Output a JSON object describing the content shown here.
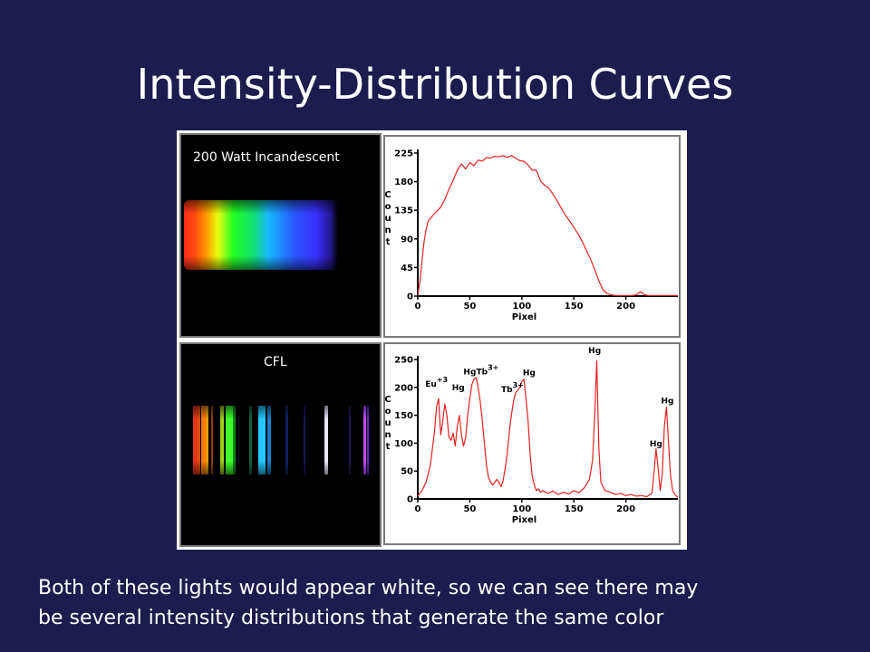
{
  "slide": {
    "title": "Intensity-Distribution Curves",
    "caption_line1": "Both of these lights would appear white, so we can see there may",
    "caption_line2": "be several intensity distributions that generate the same color"
  },
  "chart_data": [
    {
      "type": "line",
      "title": "",
      "spectrum_label": "200 Watt Incandescent",
      "xlabel": "Pixel",
      "ylabel_letters": [
        "C",
        "o",
        "u",
        "n",
        "t"
      ],
      "xlim": [
        0,
        250
      ],
      "ylim": [
        0,
        225
      ],
      "xticks": [
        0,
        50,
        100,
        150,
        200
      ],
      "yticks": [
        0,
        45,
        90,
        135,
        180,
        225
      ],
      "grid": false,
      "series": [
        {
          "color": "#e8211f",
          "x": [
            0,
            2,
            4,
            6,
            8,
            10,
            14,
            18,
            22,
            26,
            30,
            34,
            38,
            42,
            46,
            50,
            54,
            58,
            62,
            66,
            70,
            74,
            78,
            82,
            86,
            90,
            94,
            98,
            102,
            106,
            110,
            114,
            118,
            122,
            126,
            130,
            134,
            138,
            142,
            146,
            150,
            154,
            158,
            162,
            166,
            170,
            174,
            178,
            182,
            186,
            190,
            194,
            198,
            202,
            206,
            210,
            214,
            218,
            222,
            226,
            230,
            234,
            238,
            242,
            246,
            250
          ],
          "y": [
            2,
            22,
            55,
            85,
            105,
            118,
            126,
            133,
            140,
            152,
            168,
            182,
            198,
            208,
            200,
            210,
            205,
            214,
            212,
            218,
            217,
            220,
            219,
            221,
            218,
            221,
            217,
            213,
            212,
            206,
            198,
            198,
            181,
            174,
            170,
            160,
            150,
            138,
            127,
            118,
            108,
            98,
            86,
            72,
            58,
            42,
            24,
            10,
            4,
            2,
            1,
            1,
            1,
            1,
            1,
            2,
            7,
            2,
            1,
            1,
            1,
            1,
            1,
            1,
            1,
            1
          ]
        }
      ]
    },
    {
      "type": "line",
      "title": "",
      "spectrum_label": "CFL",
      "xlabel": "Pixel",
      "ylabel_letters": [
        "C",
        "o",
        "u",
        "n",
        "t"
      ],
      "xlim": [
        0,
        250
      ],
      "ylim": [
        0,
        250
      ],
      "xticks": [
        0,
        50,
        100,
        150,
        200
      ],
      "yticks": [
        0,
        50,
        100,
        150,
        200,
        250
      ],
      "grid": false,
      "annotations": [
        {
          "base": "Eu",
          "sup": "+3",
          "x": 18,
          "y": 195
        },
        {
          "base": "Hg",
          "sup": "",
          "x": 39,
          "y": 188
        },
        {
          "base": "Hg",
          "sup": "",
          "x": 50,
          "y": 217
        },
        {
          "base": "Tb",
          "sup": "3+",
          "x": 67,
          "y": 217
        },
        {
          "base": "Tb",
          "sup": "3+",
          "x": 91,
          "y": 185
        },
        {
          "base": "Hg",
          "sup": "",
          "x": 107,
          "y": 215
        },
        {
          "base": "Hg",
          "sup": "",
          "x": 170,
          "y": 255
        },
        {
          "base": "Hg",
          "sup": "",
          "x": 229,
          "y": 88
        },
        {
          "base": "Hg",
          "sup": "",
          "x": 240,
          "y": 165
        }
      ],
      "series": [
        {
          "color": "#e8211f",
          "x": [
            0,
            4,
            8,
            12,
            16,
            18,
            20,
            22,
            24,
            26,
            28,
            30,
            32,
            34,
            36,
            38,
            40,
            42,
            44,
            46,
            48,
            50,
            52,
            54,
            56,
            58,
            60,
            62,
            64,
            66,
            68,
            70,
            72,
            74,
            76,
            78,
            80,
            82,
            84,
            86,
            88,
            90,
            92,
            94,
            96,
            98,
            100,
            102,
            104,
            106,
            108,
            110,
            112,
            114,
            116,
            118,
            120,
            125,
            130,
            135,
            140,
            145,
            150,
            155,
            160,
            165,
            168,
            170,
            172,
            174,
            176,
            180,
            185,
            190,
            195,
            200,
            205,
            210,
            215,
            220,
            225,
            227,
            229,
            231,
            233,
            235,
            237,
            239,
            241,
            243,
            245,
            247,
            250
          ],
          "y": [
            5,
            15,
            30,
            60,
            120,
            165,
            180,
            115,
            140,
            170,
            150,
            110,
            105,
            118,
            95,
            130,
            150,
            115,
            95,
            110,
            150,
            180,
            205,
            215,
            218,
            200,
            175,
            140,
            100,
            60,
            38,
            30,
            25,
            30,
            35,
            30,
            22,
            32,
            55,
            80,
            120,
            150,
            175,
            190,
            195,
            200,
            210,
            215,
            180,
            140,
            80,
            40,
            25,
            15,
            18,
            12,
            15,
            10,
            14,
            8,
            12,
            9,
            15,
            11,
            20,
            35,
            70,
            150,
            248,
            90,
            30,
            15,
            12,
            8,
            10,
            6,
            8,
            5,
            6,
            4,
            10,
            45,
            90,
            55,
            15,
            45,
            130,
            165,
            100,
            40,
            15,
            8,
            3
          ]
        }
      ]
    }
  ]
}
